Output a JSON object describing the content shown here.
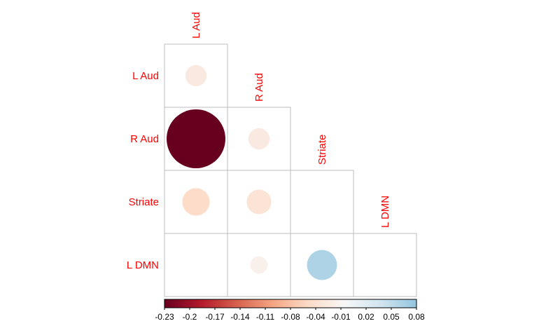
{
  "chart_data": {
    "type": "heatmap",
    "subtype": "correlation-matrix-lower-triangle-circles",
    "variables": [
      "L Aud",
      "R Aud",
      "Striate",
      "L DMN"
    ],
    "matrix": [
      [
        -0.03,
        null,
        null,
        null
      ],
      [
        -0.23,
        -0.03,
        null,
        null
      ],
      [
        -0.05,
        -0.04,
        null,
        null
      ],
      [
        0.0,
        -0.02,
        0.06,
        null
      ]
    ],
    "color_scale": {
      "min": -0.23,
      "max": 0.08,
      "ticks": [
        "-0.23",
        "-0.2",
        "-0.17",
        "-0.14",
        "-0.11",
        "-0.08",
        "-0.04",
        "-0.01",
        "0.02",
        "0.05",
        "0.08"
      ],
      "colors": [
        "#67001f",
        "#b2182b",
        "#d6604d",
        "#f4a582",
        "#fddbc7",
        "#f7f7f7",
        "#d1e5f0",
        "#92c5de"
      ]
    },
    "label_color": "#ff0000",
    "grid_color": "#bebebe",
    "legend_placement": "bottom"
  }
}
